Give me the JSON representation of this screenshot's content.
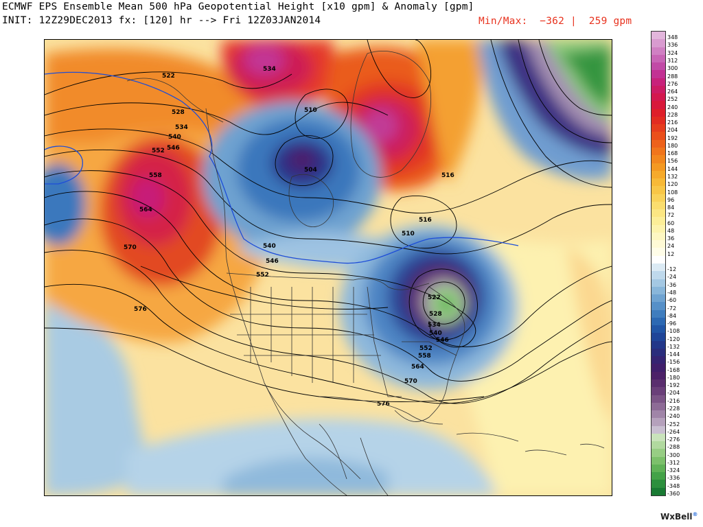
{
  "header": {
    "title": "ECMWF EPS Ensemble Mean 500 hPa Geopotential Height [x10 gpm] & Anomaly [gpm]",
    "init_line": "INIT: 12Z29DEC2013 fx: [120] hr --> Fri 12Z03JAN2014",
    "minmax": "Min/Max:  −362 |  259 gpm"
  },
  "colorbar": {
    "positive_labels": [
      "348",
      "336",
      "324",
      "312",
      "300",
      "288",
      "276",
      "264",
      "252",
      "240",
      "228",
      "216",
      "204",
      "192",
      "180",
      "168",
      "156",
      "144",
      "132",
      "120",
      "108",
      "96",
      "84",
      "72",
      "60",
      "48",
      "36",
      "24",
      "12"
    ],
    "negative_labels": [
      "-12",
      "-24",
      "-36",
      "-48",
      "-60",
      "-72",
      "-84",
      "-96",
      "-108",
      "-120",
      "-132",
      "-144",
      "-156",
      "-168",
      "-180",
      "-192",
      "-204",
      "-216",
      "-228",
      "-240",
      "-252",
      "-264",
      "-276",
      "-288",
      "-300",
      "-312",
      "-324",
      "-336",
      "-348",
      "-360"
    ],
    "positive_colors": [
      "#e2b6dc",
      "#d99bd0",
      "#d080c3",
      "#c865b5",
      "#c14aa6",
      "#c23193",
      "#c7227b",
      "#cc1c64",
      "#d3184e",
      "#d8193b",
      "#de1f2a",
      "#e22c21",
      "#e63d1d",
      "#ea4f1b",
      "#ed621b",
      "#f0751c",
      "#f2871e",
      "#f49922",
      "#f6aa2b",
      "#f7b937",
      "#f8c647",
      "#f9d25a",
      "#fadd6e",
      "#fbe683",
      "#fcee98",
      "#fdf3ad",
      "#fef7c2",
      "#fffad6",
      "#fffde8"
    ],
    "negative_colors": [
      "#dbeaf4",
      "#bfd9ec",
      "#a4c8e3",
      "#89b6da",
      "#6fa3d1",
      "#5690c8",
      "#3f7dbe",
      "#2c69b3",
      "#2156a6",
      "#1f4598",
      "#223789",
      "#2a2d7c",
      "#352472",
      "#401f6b",
      "#4c2168",
      "#5a2e6e",
      "#6a3f79",
      "#7b5486",
      "#8d6b96",
      "#a085a8",
      "#b5a1bc",
      "#c9bfd1",
      "#c9e3bb",
      "#b1d99f",
      "#97cd84",
      "#7cc06b",
      "#60b257",
      "#44a248",
      "#2c8f3d",
      "#197a33"
    ]
  },
  "map": {
    "contour_labels": [
      "522",
      "528",
      "534",
      "540",
      "546",
      "552",
      "558",
      "564",
      "570",
      "576",
      "534",
      "516",
      "510",
      "504",
      "510",
      "516",
      "540",
      "546",
      "552",
      "522",
      "528",
      "534",
      "540",
      "546",
      "552",
      "558",
      "564",
      "570",
      "576"
    ]
  },
  "logo": {
    "text": "WxBell",
    "mark": "®"
  }
}
